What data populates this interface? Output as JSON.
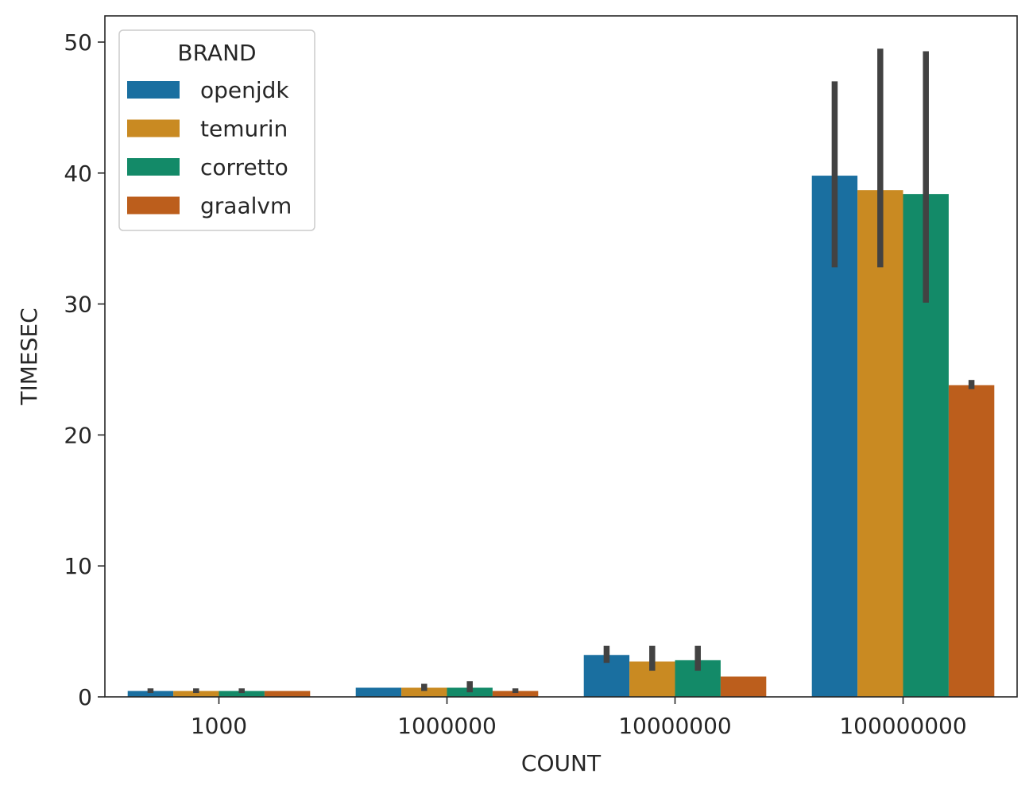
{
  "chart_data": {
    "type": "bar",
    "title": "",
    "xlabel": "COUNT",
    "ylabel": "TIMESEC",
    "categories": [
      "1000",
      "1000000",
      "10000000",
      "100000000"
    ],
    "ylim": [
      0,
      52
    ],
    "yticks": [
      0,
      10,
      20,
      30,
      40,
      50
    ],
    "grid": false,
    "legend": {
      "title": "BRAND",
      "placement": "top-left"
    },
    "series": [
      {
        "name": "openjdk",
        "color": "#1a6fa0",
        "values": [
          0.45,
          0.7,
          3.2,
          39.8
        ],
        "err_low": [
          0.3,
          0.7,
          2.6,
          32.8
        ],
        "err_high": [
          0.65,
          0.7,
          3.9,
          47.0
        ]
      },
      {
        "name": "temurin",
        "color": "#c98a22",
        "values": [
          0.45,
          0.7,
          2.7,
          38.7
        ],
        "err_low": [
          0.3,
          0.45,
          2.0,
          32.8
        ],
        "err_high": [
          0.65,
          1.0,
          3.9,
          49.5
        ]
      },
      {
        "name": "corretto",
        "color": "#138a68",
        "values": [
          0.45,
          0.7,
          2.8,
          38.4
        ],
        "err_low": [
          0.3,
          0.35,
          2.0,
          30.1
        ],
        "err_high": [
          0.65,
          1.2,
          3.9,
          49.3
        ]
      },
      {
        "name": "graalvm",
        "color": "#bc5e1c",
        "values": [
          0.45,
          0.45,
          1.55,
          23.8
        ],
        "err_low": [
          0.45,
          0.3,
          1.55,
          23.5
        ],
        "err_high": [
          0.45,
          0.65,
          1.55,
          24.2
        ]
      }
    ]
  }
}
